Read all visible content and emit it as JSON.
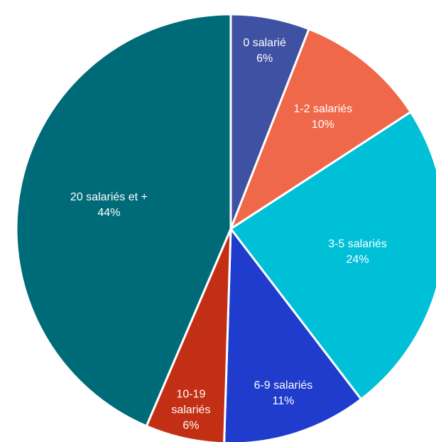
{
  "chart_data": {
    "type": "pie",
    "slices": [
      {
        "label": "0 salarié",
        "value": 6,
        "display": "6%",
        "color": "#3f51a2"
      },
      {
        "label": "1-2 salariés",
        "value": 10,
        "display": "10%",
        "color": "#f0684a"
      },
      {
        "label": "3-5 salariés",
        "value": 24,
        "display": "24%",
        "color": "#00c0d8"
      },
      {
        "label": "6-9 salariés",
        "value": 11,
        "display": "11%",
        "color": "#1f3ccc"
      },
      {
        "label": "10-19 salariés",
        "label_lines": [
          "10-19",
          "salariés"
        ],
        "value": 6,
        "display": "6%",
        "color": "#c22f14"
      },
      {
        "label": "20 salariés et +",
        "value": 44,
        "display": "44%",
        "color": "#006b78"
      }
    ]
  }
}
